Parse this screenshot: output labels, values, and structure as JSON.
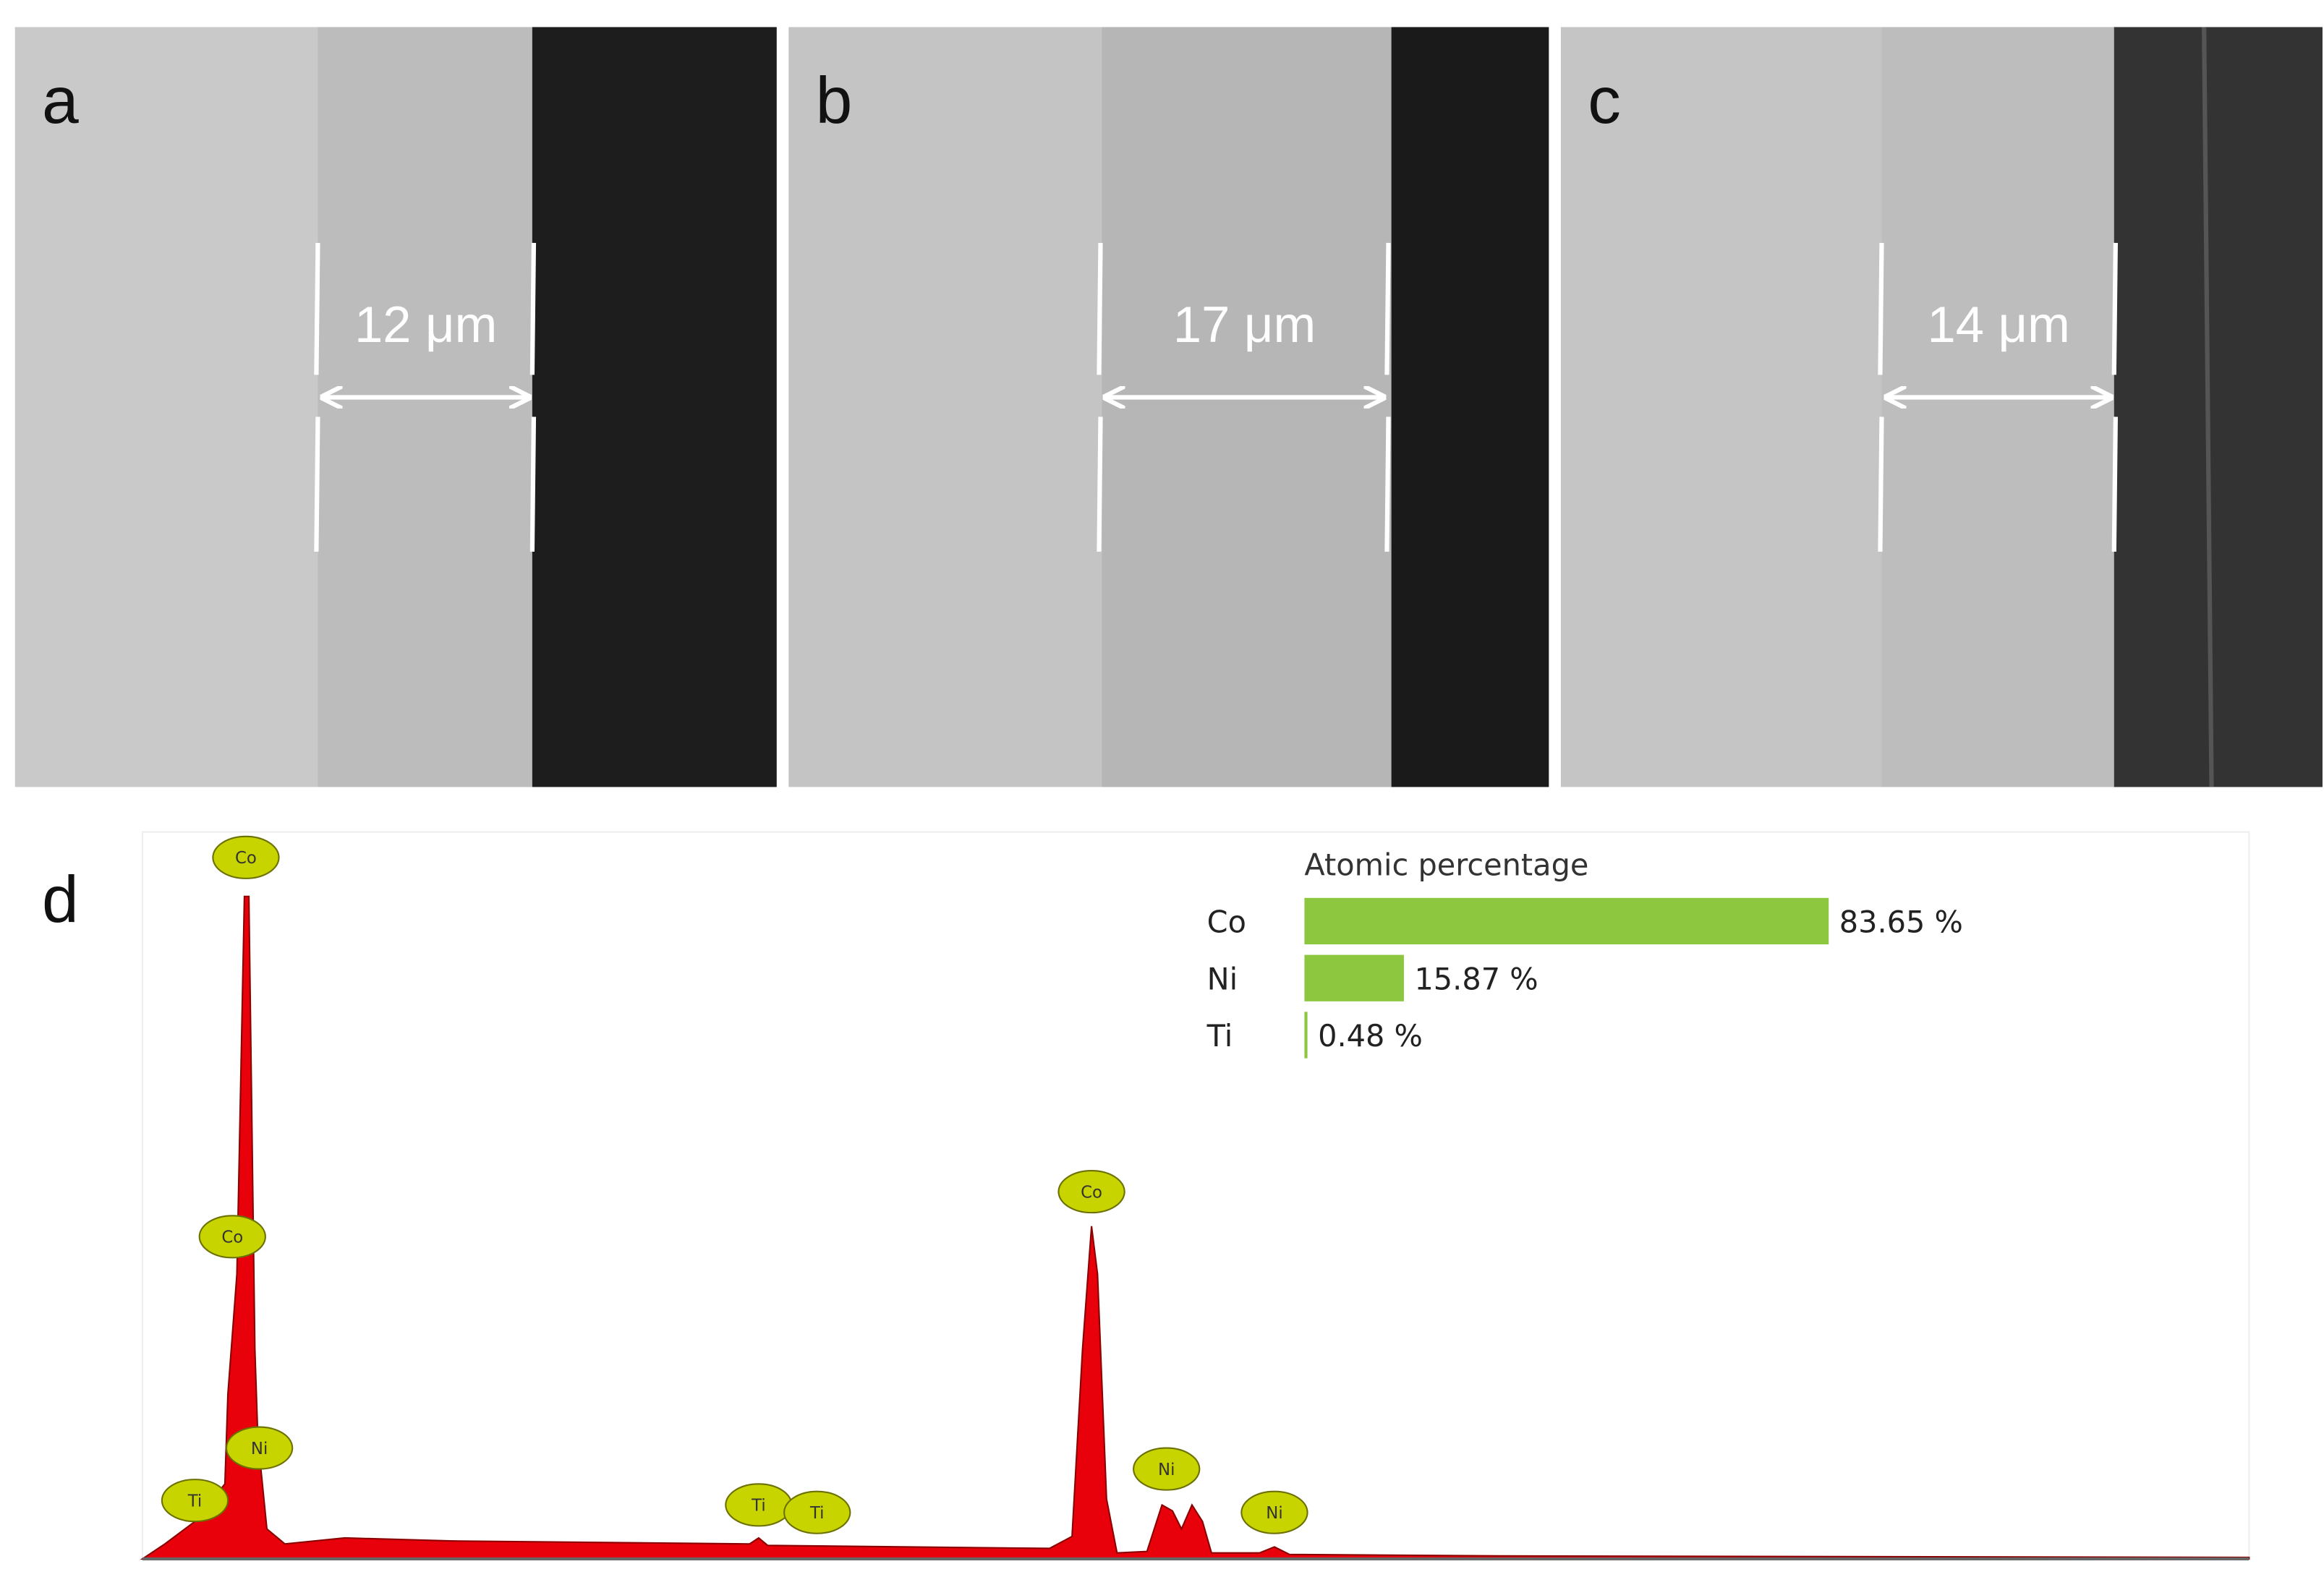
{
  "panels": [
    {
      "label": "a",
      "thickness": "12 μm"
    },
    {
      "label": "b",
      "thickness": "17 μm"
    },
    {
      "label": "c",
      "thickness": "14 μm"
    }
  ],
  "spectrum": {
    "label": "d",
    "peaks": [
      "Co",
      "Co",
      "Ni",
      "Ti",
      "Ti",
      "Ti",
      "Co",
      "Ni",
      "Ni"
    ]
  },
  "chart_data": {
    "type": "bar",
    "orientation": "horizontal",
    "title": "Atomic percentage",
    "categories": [
      "Co",
      "Ni",
      "Ti"
    ],
    "values": [
      83.65,
      15.87,
      0.48
    ],
    "value_labels": [
      "83.65 %",
      "15.87 %",
      "0.48 %"
    ],
    "color": "#8dc63f"
  }
}
